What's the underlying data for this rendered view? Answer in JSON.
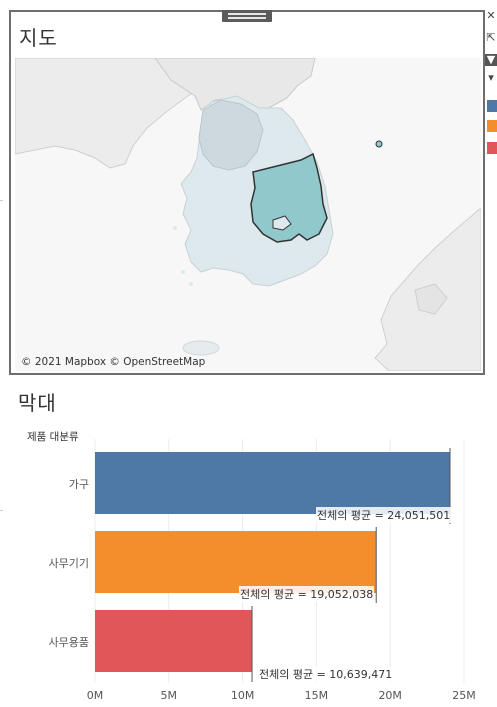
{
  "map_panel": {
    "title": "지도",
    "attribution": "© 2021 Mapbox © OpenStreetMap"
  },
  "toolbar": {
    "icons": [
      "close-icon",
      "popout-icon",
      "filter-icon",
      "dropdown-icon"
    ]
  },
  "legend_swatches": [
    "#4e79a7",
    "#f28e2b",
    "#e15759"
  ],
  "bar_panel": {
    "title": "막대",
    "row_header": "제품 대분류"
  },
  "chart_data": {
    "type": "bar",
    "orientation": "horizontal",
    "categories": [
      "가구",
      "사무기기",
      "사무용품"
    ],
    "values": [
      24051501,
      19052038,
      10639471
    ],
    "colors": [
      "#4e79a7",
      "#f28e2b",
      "#e15759"
    ],
    "reference_labels": [
      "전체의 평균 = 24,051,501",
      "전체의 평균 = 19,052,038",
      "전체의 평균 = 10,639,471"
    ],
    "xlim": [
      0,
      25000000
    ],
    "xticks": [
      0,
      5000000,
      10000000,
      15000000,
      20000000,
      25000000
    ],
    "xtick_labels": [
      "0M",
      "5M",
      "10M",
      "15M",
      "20M",
      "25M"
    ],
    "grid": true
  }
}
